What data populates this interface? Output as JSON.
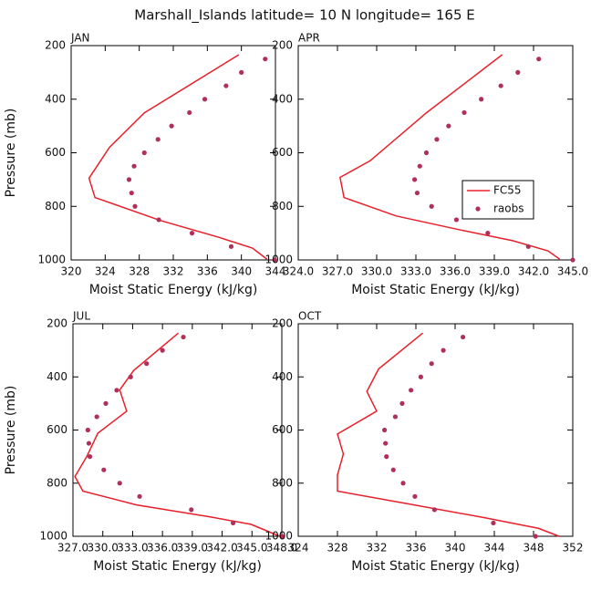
{
  "title": "Marshall_Islands  latitude= 10 N longitude= 165 E",
  "chart_data": [
    {
      "type": "line",
      "label": "JAN",
      "xlabel": "Moist Static Energy (kJ/kg)",
      "ylabel": "Pressure (mb)",
      "xlim": [
        320,
        344
      ],
      "xticks": [
        320,
        324,
        328,
        332,
        336,
        340,
        344
      ],
      "ylim": [
        1000,
        200
      ],
      "yticks": [
        200,
        400,
        600,
        800,
        1000
      ],
      "legend": false,
      "series": [
        {
          "name": "FC55",
          "style": "line",
          "color": "#e8202a",
          "x": [
            339.7,
            328.6,
            324.5,
            322.1,
            322.8,
            330.5,
            337.3,
            341.3,
            343.0
          ],
          "y": [
            234,
            451,
            580,
            695,
            767,
            853,
            915,
            956,
            997
          ]
        },
        {
          "name": "raobs",
          "style": "points",
          "color": "#b0305a",
          "x": [
            342.8,
            340.0,
            338.2,
            335.7,
            333.9,
            331.8,
            330.2,
            328.6,
            327.4,
            326.8,
            327.1,
            327.5,
            330.3,
            334.2,
            338.8,
            343.9
          ],
          "y": [
            250,
            300,
            350,
            400,
            450,
            500,
            550,
            600,
            650,
            700,
            750,
            800,
            850,
            900,
            950,
            1000
          ]
        }
      ]
    },
    {
      "type": "line",
      "label": "APR",
      "xlabel": "Moist Static Energy (kJ/kg)",
      "xlim": [
        324,
        345
      ],
      "xticks": [
        {
          "value": 324,
          "label": "324.0"
        },
        {
          "value": 327,
          "label": "327.0"
        },
        {
          "value": 330,
          "label": "330.0"
        },
        {
          "value": 333,
          "label": "333.0"
        },
        {
          "value": 336,
          "label": "336.0"
        },
        {
          "value": 339,
          "label": "339.0"
        },
        {
          "value": 342,
          "label": "342.0"
        },
        {
          "value": 345,
          "label": "345.0"
        }
      ],
      "ylim": [
        1000,
        200
      ],
      "yticks": [
        200,
        400,
        600,
        800,
        1000
      ],
      "legend": true,
      "series": [
        {
          "name": "FC55",
          "style": "line",
          "color": "#e8202a",
          "x": [
            339.6,
            333.8,
            329.5,
            327.2,
            327.5,
            331.5,
            336.3,
            340.4,
            343.1,
            344.0
          ],
          "y": [
            234,
            451,
            630,
            692,
            767,
            836,
            887,
            928,
            966,
            997
          ]
        },
        {
          "name": "raobs",
          "style": "points",
          "color": "#b0305a",
          "x": [
            342.4,
            340.8,
            339.5,
            338.0,
            336.7,
            335.5,
            334.6,
            333.8,
            333.3,
            332.9,
            333.1,
            334.2,
            336.1,
            338.5,
            341.6,
            345.0
          ],
          "y": [
            250,
            300,
            350,
            400,
            450,
            500,
            550,
            600,
            650,
            700,
            750,
            800,
            850,
            900,
            950,
            1000
          ]
        }
      ]
    },
    {
      "type": "line",
      "label": "JUL",
      "xlabel": "Moist Static Energy (kJ/kg)",
      "ylabel": "Pressure (mb)",
      "xlim": [
        327,
        348
      ],
      "xticks": [
        {
          "value": 327,
          "label": "327.0"
        },
        {
          "value": 330,
          "label": "330.0"
        },
        {
          "value": 333,
          "label": "333.0"
        },
        {
          "value": 336,
          "label": "336.0"
        },
        {
          "value": 339,
          "label": "339.0"
        },
        {
          "value": 342,
          "label": "342.0"
        },
        {
          "value": 345,
          "label": "345.0"
        },
        {
          "value": 348,
          "label": "348.0"
        }
      ],
      "ylim": [
        1000,
        200
      ],
      "yticks": [
        200,
        400,
        600,
        800,
        1000
      ],
      "legend": false,
      "series": [
        {
          "name": "FC55",
          "style": "line",
          "color": "#e8202a",
          "x": [
            337.6,
            333.1,
            331.7,
            332.4,
            329.5,
            328.4,
            327.2,
            328.0,
            333.4,
            340.8,
            344.9,
            347.8
          ],
          "y": [
            235,
            376,
            449,
            529,
            612,
            699,
            775,
            830,
            882,
            927,
            955,
            1000
          ]
        },
        {
          "name": "raobs",
          "style": "points",
          "color": "#b0305a",
          "x": [
            338.1,
            336.0,
            334.4,
            332.8,
            331.4,
            330.3,
            329.4,
            328.5,
            328.6,
            328.7,
            330.1,
            331.7,
            333.7,
            338.9,
            343.1,
            348.0
          ],
          "y": [
            250,
            300,
            350,
            400,
            450,
            500,
            550,
            600,
            650,
            700,
            750,
            800,
            850,
            900,
            950,
            1000
          ]
        }
      ]
    },
    {
      "type": "line",
      "label": "OCT",
      "xlabel": "Moist Static Energy (kJ/kg)",
      "xlim": [
        324,
        352
      ],
      "xticks": [
        324,
        328,
        332,
        336,
        340,
        344,
        348,
        352
      ],
      "ylim": [
        1000,
        200
      ],
      "yticks": [
        200,
        400,
        600,
        800,
        1000
      ],
      "legend": false,
      "series": [
        {
          "name": "FC55",
          "style": "line",
          "color": "#e8202a",
          "x": [
            336.7,
            332.2,
            331.0,
            332.0,
            328.0,
            328.6,
            328.0,
            328.0,
            335.5,
            343.0,
            348.5,
            350.6
          ],
          "y": [
            235,
            370,
            455,
            529,
            615,
            690,
            770,
            830,
            880,
            930,
            970,
            1000
          ]
        },
        {
          "name": "raobs",
          "style": "points",
          "color": "#b0305a",
          "x": [
            340.8,
            338.8,
            337.6,
            336.5,
            335.5,
            334.6,
            333.9,
            332.8,
            332.9,
            333.0,
            333.7,
            334.7,
            335.9,
            337.9,
            343.9,
            348.2
          ],
          "y": [
            250,
            300,
            350,
            400,
            450,
            500,
            550,
            600,
            650,
            700,
            750,
            800,
            850,
            900,
            950,
            1000
          ]
        }
      ]
    }
  ]
}
